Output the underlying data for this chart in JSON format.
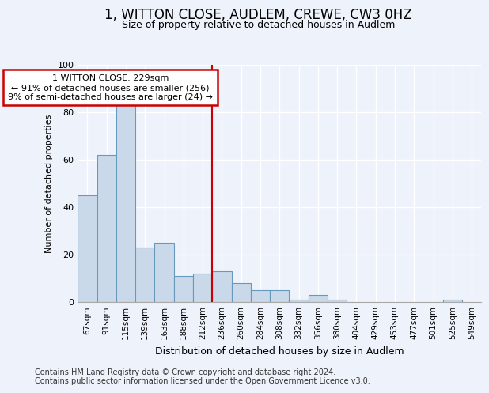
{
  "title": "1, WITTON CLOSE, AUDLEM, CREWE, CW3 0HZ",
  "subtitle": "Size of property relative to detached houses in Audlem",
  "xlabel": "Distribution of detached houses by size in Audlem",
  "ylabel": "Number of detached properties",
  "bar_color": "#c9d9ea",
  "bar_edge_color": "#6699bb",
  "background_color": "#eef2fa",
  "grid_color": "#ffffff",
  "categories": [
    "67sqm",
    "91sqm",
    "115sqm",
    "139sqm",
    "163sqm",
    "188sqm",
    "212sqm",
    "236sqm",
    "260sqm",
    "284sqm",
    "308sqm",
    "332sqm",
    "356sqm",
    "380sqm",
    "404sqm",
    "429sqm",
    "453sqm",
    "477sqm",
    "501sqm",
    "525sqm",
    "549sqm"
  ],
  "values": [
    45,
    62,
    84,
    23,
    25,
    11,
    12,
    13,
    8,
    5,
    5,
    1,
    3,
    1,
    0,
    0,
    0,
    0,
    0,
    1,
    0
  ],
  "ylim": [
    0,
    100
  ],
  "yticks": [
    0,
    20,
    40,
    60,
    80,
    100
  ],
  "marker_index": 7,
  "marker_line_color": "#cc0000",
  "annotation_line1": "1 WITTON CLOSE: 229sqm",
  "annotation_line2": "← 91% of detached houses are smaller (256)",
  "annotation_line3": "9% of semi-detached houses are larger (24) →",
  "annotation_box_color": "#ffffff",
  "annotation_box_edge": "#cc0000",
  "footer": "Contains HM Land Registry data © Crown copyright and database right 2024.\nContains public sector information licensed under the Open Government Licence v3.0.",
  "title_fontsize": 12,
  "subtitle_fontsize": 9,
  "xlabel_fontsize": 9,
  "ylabel_fontsize": 8,
  "tick_fontsize": 7.5,
  "footer_fontsize": 7
}
